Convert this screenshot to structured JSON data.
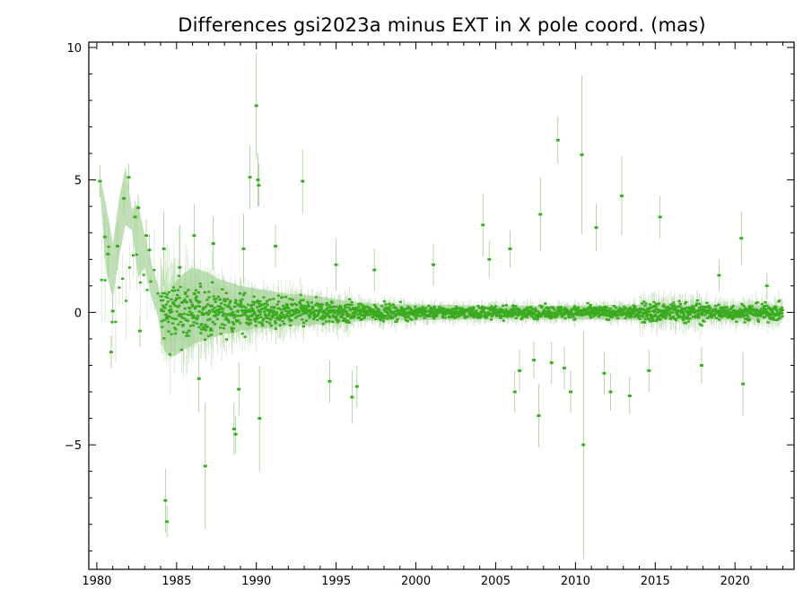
{
  "chart_data": {
    "type": "scatter",
    "title": "Differences gsi2023a minus EXT in X pole coord. (mas)",
    "xlabel": "",
    "ylabel": "",
    "xlim": [
      1979.5,
      2023.7
    ],
    "ylim": [
      -9.7,
      10.2
    ],
    "x_ticks": [
      1980,
      1985,
      1990,
      1995,
      2000,
      2005,
      2010,
      2015,
      2020
    ],
    "y_ticks": [
      -5,
      0,
      5,
      10
    ],
    "x_tick_labels": [
      "1980",
      "1985",
      "1990",
      "1995",
      "2000",
      "2005",
      "2010",
      "2015",
      "2020"
    ],
    "y_tick_labels": [
      "−5",
      "0",
      "5",
      "10"
    ],
    "grid": false,
    "legend": "none",
    "colors": {
      "points": "#3aaa1e",
      "errorbars": "#a8d49a",
      "band": "#b9dcaf",
      "frame": "#000000"
    },
    "band": {
      "x": [
        1980.2,
        1980.6,
        1981.0,
        1981.4,
        1981.8,
        1982.2,
        1982.6,
        1983.0,
        1983.4,
        1983.8,
        1984.2,
        1984.6,
        1985.0,
        1985.5,
        1986.0,
        1986.5,
        1987.0,
        1987.5,
        1988.0,
        1988.5,
        1989.0,
        1990.0,
        1991.0,
        1992.0,
        1993.0,
        1994.0,
        1995.0,
        1996.0,
        1997.0,
        1998.0,
        2000.0,
        2005.0,
        2010.0,
        2015.0,
        2020.0,
        2023.0
      ],
      "upper": [
        5.2,
        4.0,
        2.6,
        4.3,
        5.5,
        3.9,
        4.1,
        2.9,
        1.9,
        1.1,
        0.2,
        0.6,
        1.2,
        1.5,
        1.7,
        1.6,
        1.5,
        1.3,
        1.2,
        1.1,
        1.0,
        0.9,
        0.8,
        0.7,
        0.65,
        0.6,
        0.5,
        0.4,
        0.35,
        0.3,
        0.3,
        0.25,
        0.25,
        0.3,
        0.25,
        0.25
      ],
      "lower": [
        4.6,
        1.5,
        0.5,
        2.1,
        3.3,
        3.1,
        1.3,
        1.7,
        0.6,
        -0.1,
        -1.4,
        -1.7,
        -1.6,
        -1.4,
        -1.2,
        -1.1,
        -1.0,
        -0.9,
        -0.8,
        -0.8,
        -0.7,
        -0.6,
        -0.6,
        -0.5,
        -0.5,
        -0.45,
        -0.4,
        -0.35,
        -0.3,
        -0.3,
        -0.3,
        -0.25,
        -0.25,
        -0.3,
        -0.25,
        -0.25
      ]
    },
    "series": [
      {
        "outliers": [
          {
            "x": 1980.2,
            "y": 4.95,
            "err": 0.6
          },
          {
            "x": 1980.5,
            "y": 2.85,
            "err": 0.8
          },
          {
            "x": 1980.7,
            "y": 2.2,
            "err": 0.9
          },
          {
            "x": 1980.9,
            "y": -1.5,
            "err": 0.6
          },
          {
            "x": 1981.0,
            "y": 0.05,
            "err": 0.5
          },
          {
            "x": 1981.3,
            "y": 2.5,
            "err": 0.9
          },
          {
            "x": 1981.7,
            "y": 4.3,
            "err": 0.6
          },
          {
            "x": 1982.0,
            "y": 5.1,
            "err": 0.5
          },
          {
            "x": 1982.4,
            "y": 3.6,
            "err": 0.6
          },
          {
            "x": 1982.6,
            "y": 3.95,
            "err": 0.5
          },
          {
            "x": 1982.7,
            "y": -0.7,
            "err": 0.6
          },
          {
            "x": 1983.1,
            "y": 2.9,
            "err": 0.6
          },
          {
            "x": 1983.3,
            "y": 2.35,
            "err": 0.6
          },
          {
            "x": 1984.3,
            "y": -7.1,
            "err": 1.2
          },
          {
            "x": 1984.4,
            "y": -7.9,
            "err": 0.6
          },
          {
            "x": 1984.2,
            "y": 2.4,
            "err": 1.4
          },
          {
            "x": 1985.2,
            "y": 1.7,
            "err": 1.6
          },
          {
            "x": 1986.1,
            "y": 2.9,
            "err": 1.2
          },
          {
            "x": 1986.4,
            "y": -2.5,
            "err": 1.3
          },
          {
            "x": 1986.8,
            "y": -5.8,
            "err": 2.4
          },
          {
            "x": 1987.3,
            "y": 2.6,
            "err": 1.0
          },
          {
            "x": 1988.6,
            "y": -4.4,
            "err": 1.0
          },
          {
            "x": 1988.7,
            "y": -4.6,
            "err": 0.7
          },
          {
            "x": 1988.9,
            "y": -2.9,
            "err": 1.0
          },
          {
            "x": 1989.2,
            "y": 2.4,
            "err": 1.3
          },
          {
            "x": 1989.6,
            "y": 5.1,
            "err": 1.2
          },
          {
            "x": 1990.0,
            "y": 7.8,
            "err": 2.0
          },
          {
            "x": 1990.1,
            "y": 5.0,
            "err": 1.0
          },
          {
            "x": 1990.15,
            "y": 4.8,
            "err": 0.8
          },
          {
            "x": 1990.2,
            "y": -4.0,
            "err": 2.0
          },
          {
            "x": 1991.2,
            "y": 2.5,
            "err": 0.8
          },
          {
            "x": 1992.9,
            "y": 4.95,
            "err": 1.2
          },
          {
            "x": 1994.6,
            "y": -2.6,
            "err": 0.8
          },
          {
            "x": 1995.0,
            "y": 1.8,
            "err": 1.0
          },
          {
            "x": 1996.0,
            "y": -3.2,
            "err": 1.0
          },
          {
            "x": 1996.3,
            "y": -2.8,
            "err": 0.8
          },
          {
            "x": 1997.4,
            "y": 1.6,
            "err": 0.8
          },
          {
            "x": 2001.1,
            "y": 1.8,
            "err": 0.8
          },
          {
            "x": 2004.2,
            "y": 3.3,
            "err": 1.2
          },
          {
            "x": 2004.6,
            "y": 2.0,
            "err": 0.7
          },
          {
            "x": 2005.9,
            "y": 2.4,
            "err": 0.7
          },
          {
            "x": 2006.2,
            "y": -3.0,
            "err": 0.8
          },
          {
            "x": 2006.5,
            "y": -2.2,
            "err": 0.8
          },
          {
            "x": 2007.4,
            "y": -1.8,
            "err": 0.7
          },
          {
            "x": 2007.7,
            "y": -3.9,
            "err": 1.2
          },
          {
            "x": 2007.8,
            "y": 3.7,
            "err": 1.4
          },
          {
            "x": 2008.5,
            "y": -1.9,
            "err": 0.8
          },
          {
            "x": 2008.9,
            "y": 6.5,
            "err": 0.9
          },
          {
            "x": 2009.3,
            "y": -2.1,
            "err": 0.8
          },
          {
            "x": 2009.7,
            "y": -3.0,
            "err": 0.8
          },
          {
            "x": 2010.4,
            "y": 5.95,
            "err": 3.0
          },
          {
            "x": 2010.5,
            "y": -5.0,
            "err": 4.3
          },
          {
            "x": 2011.3,
            "y": 3.2,
            "err": 0.9
          },
          {
            "x": 2011.8,
            "y": -2.3,
            "err": 0.8
          },
          {
            "x": 2012.2,
            "y": -3.0,
            "err": 0.7
          },
          {
            "x": 2012.9,
            "y": 4.4,
            "err": 1.5
          },
          {
            "x": 2013.4,
            "y": -3.15,
            "err": 0.7
          },
          {
            "x": 2014.6,
            "y": -2.2,
            "err": 0.8
          },
          {
            "x": 2015.3,
            "y": 3.6,
            "err": 0.8
          },
          {
            "x": 2017.9,
            "y": -2.0,
            "err": 0.7
          },
          {
            "x": 2019.0,
            "y": 1.4,
            "err": 0.6
          },
          {
            "x": 2020.4,
            "y": 2.8,
            "err": 1.0
          },
          {
            "x": 2020.5,
            "y": -2.7,
            "err": 1.2
          },
          {
            "x": 2022.0,
            "y": 1.0,
            "err": 0.5
          }
        ]
      }
    ]
  }
}
